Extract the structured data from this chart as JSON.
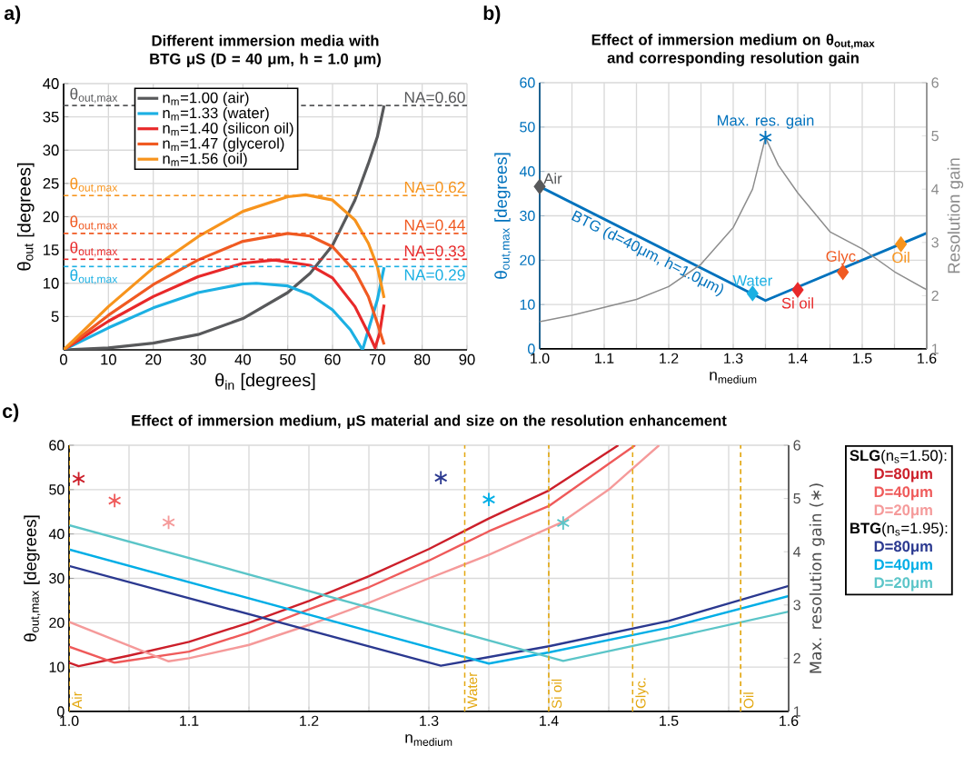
{
  "chart_data": [
    {
      "type": "line",
      "title": "Different immersion media with BTG μS (D = 40 μm, h = 1.0 μm)",
      "xlabel": "θ$_{in}$ [degrees]",
      "ylabel": "θ$_{out}$ [degrees]",
      "xlim": [
        0,
        90
      ],
      "ylim": [
        0,
        40
      ],
      "xticks": [
        0,
        10,
        20,
        30,
        40,
        50,
        60,
        70,
        80,
        90
      ],
      "yticks": [
        {
          "value": 0,
          "label": null
        },
        5,
        10,
        15,
        20,
        25,
        30,
        35,
        40
      ],
      "grid": true,
      "legend": "top left",
      "series": [
        {
          "name": "n$_{m}$=1.00 (air)",
          "color": "#58595b",
          "x": [
            0,
            10,
            20,
            30,
            40,
            50,
            55,
            60,
            65,
            68,
            70,
            71.5
          ],
          "values": [
            0,
            0.3,
            1,
            2.3,
            4.7,
            8.6,
            11.5,
            15.7,
            22.5,
            28,
            32,
            36.7
          ]
        },
        {
          "name": "n$_{m}$=1.33 (water)",
          "color": "#1cb0e3",
          "x": [
            0,
            10,
            20,
            30,
            40,
            43,
            50,
            55,
            60,
            64,
            66.7,
            68,
            70,
            71.5
          ],
          "values": [
            0,
            3.3,
            6.3,
            8.6,
            9.9,
            10,
            9.6,
            8.3,
            6,
            3,
            0,
            3,
            7.5,
            12.4
          ]
        },
        {
          "name": "n$_{m}$=1.40 (silicon oil)",
          "color": "#e8292a",
          "x": [
            0,
            10,
            20,
            30,
            40,
            47,
            55,
            60,
            65,
            68,
            69.5,
            70.5,
            71.5
          ],
          "values": [
            0,
            4.3,
            8,
            11,
            13,
            13.5,
            12.7,
            10.8,
            6.5,
            2.5,
            0.3,
            2.5,
            6.8
          ]
        },
        {
          "name": "n$_{m}$=1.47 (glycerol)",
          "color": "#f05a22",
          "x": [
            0,
            10,
            20,
            30,
            40,
            50,
            55,
            60,
            65,
            68,
            70,
            71.5
          ],
          "values": [
            0,
            5.2,
            9.8,
            13.5,
            16.3,
            17.5,
            17.1,
            15.5,
            11.8,
            8,
            4,
            0.8
          ]
        },
        {
          "name": "n$_{m}$=1.56 (oil)",
          "color": "#f7941d",
          "x": [
            0,
            10,
            20,
            30,
            40,
            50,
            54,
            60,
            65,
            68,
            70,
            71.5
          ],
          "values": [
            0,
            6.5,
            12.3,
            17,
            20.8,
            23,
            23.3,
            22.5,
            19.5,
            16,
            12.5,
            7.8
          ]
        }
      ],
      "ref_lines": [
        {
          "axis": "y",
          "value": 36.7,
          "color": "#58595b",
          "line_style": "dashed"
        },
        {
          "axis": "y",
          "value": 23.2,
          "color": "#f7941d",
          "line_style": "dashed"
        },
        {
          "axis": "y",
          "value": 17.5,
          "color": "#f05a22",
          "line_style": "dashed"
        },
        {
          "axis": "y",
          "value": 13.6,
          "color": "#e8292a",
          "line_style": "dashed"
        },
        {
          "axis": "y",
          "value": 12.5,
          "color": "#1cb0e3",
          "line_style": "dashed"
        }
      ],
      "annotations": [
        "a)",
        {
          "text": "θ$_{out,max}$",
          "x": 1,
          "y": 36.7
        },
        {
          "text": "θ$_{out,max}$",
          "x": 1,
          "y": 23.2
        },
        {
          "text": "θ$_{out,max}$",
          "x": 1,
          "y": 17.5
        },
        {
          "text": "θ$_{out,max}$",
          "x": 1,
          "y": 13.6
        },
        {
          "text": "θ$_{out,max}$",
          "x": 1,
          "y": 12.5
        },
        {
          "text": "NA=0.60",
          "x": 90,
          "y": 36.7
        },
        {
          "text": "NA=0.62",
          "x": 90,
          "y": 23.2
        },
        {
          "text": "NA=0.44",
          "x": 90,
          "y": 17.5
        },
        {
          "text": "NA=0.33",
          "x": 90,
          "y": 13.6
        },
        {
          "text": "NA=0.29",
          "x": 90,
          "y": 12.5
        }
      ]
    },
    {
      "type": "line",
      "title": "Effect of immersion medium on θ$_{out,max}$ and corresponding resolution gain",
      "xlabel": "n$_{medium}$",
      "ylabel": "θ$_{out,max}$ [degrees]",
      "y2label": "Resolution gain",
      "xlim": [
        1.0,
        1.6
      ],
      "ylim": [
        0,
        60
      ],
      "y2lim": [
        1,
        6
      ],
      "xticks": [
        {
          "value": 1.0,
          "label": "1.0"
        },
        {
          "value": 1.05,
          "label": null
        },
        1.1,
        {
          "value": 1.15,
          "label": null
        },
        1.2,
        {
          "value": 1.25,
          "label": null
        },
        1.3,
        {
          "value": 1.35,
          "label": null
        },
        1.4,
        {
          "value": 1.45,
          "label": null
        },
        1.5,
        {
          "value": 1.55,
          "label": null
        },
        1.6
      ],
      "yticks": [
        0,
        10,
        20,
        30,
        40,
        50,
        60
      ],
      "y2ticks": [
        1,
        2,
        3,
        4,
        5,
        6
      ],
      "grid": true,
      "legend": false,
      "series": [
        {
          "type": "line",
          "name": "BTG (d=40μm, h=1.0μm)",
          "color": "#0072bd",
          "x": [
            1.0,
            1.35,
            1.6
          ],
          "values": [
            36.6,
            10.9,
            26.1
          ]
        },
        {
          "type": "line",
          "axis": "y2",
          "color": "#8c8c8c",
          "x": [
            1.0,
            1.05,
            1.1,
            1.15,
            1.2,
            1.25,
            1.3,
            1.33,
            1.35,
            1.37,
            1.4,
            1.45,
            1.5,
            1.55,
            1.6
          ],
          "values": [
            1.51,
            1.63,
            1.78,
            1.93,
            2.17,
            2.59,
            3.28,
            4.0,
            4.97,
            4.45,
            3.93,
            3.2,
            2.88,
            2.45,
            2.11
          ]
        },
        {
          "type": "scatter",
          "marker": "diamond",
          "x": [
            1.0,
            1.33,
            1.4,
            1.47,
            1.56
          ],
          "values": [
            36.6,
            12.5,
            13.3,
            17.3,
            23.6
          ],
          "colors": [
            "#58595b",
            "#1cb0e3",
            "#e8292a",
            "#f05a22",
            "#f7941d"
          ]
        },
        {
          "type": "scatter",
          "axis": "y2",
          "marker": "cross",
          "color": "#0072bd",
          "x": [
            1.35
          ],
          "values": [
            4.97
          ]
        }
      ],
      "annotations": [
        "b)",
        {
          "text": "Air",
          "x": 1.0,
          "y": 36.6
        },
        {
          "text": "Water",
          "x": 1.33,
          "y": 12.5
        },
        {
          "text": "Si oil",
          "x": 1.4,
          "y": 13.3
        },
        {
          "text": "Glyc.",
          "x": 1.47,
          "y": 17.3
        },
        {
          "text": "Oil",
          "x": 1.56,
          "y": 23.6
        },
        "Max. res. gain"
      ]
    },
    {
      "type": "line",
      "title": "Effect of immersion medium, μS material and size on the resolution enhancement",
      "xlabel": "n$_{medium}$",
      "ylabel": "θ$_{out,max}$ [degrees]",
      "y2label": "Max. resolution gain (∗)",
      "xlim": [
        1.0,
        1.6
      ],
      "ylim": [
        0,
        60
      ],
      "y2lim": [
        1,
        6
      ],
      "xticks": [
        {
          "value": 1.0,
          "label": "1.0"
        },
        {
          "value": 1.05,
          "label": null
        },
        1.1,
        {
          "value": 1.15,
          "label": null
        },
        1.2,
        {
          "value": 1.25,
          "label": null
        },
        1.3,
        {
          "value": 1.35,
          "label": null
        },
        1.4,
        {
          "value": 1.45,
          "label": null
        },
        1.5,
        {
          "value": 1.55,
          "label": null
        },
        1.6
      ],
      "yticks": [
        0,
        10,
        20,
        30,
        40,
        50,
        60
      ],
      "y2ticks": [
        1,
        2,
        3,
        4,
        5,
        6
      ],
      "grid": true,
      "legend": "right",
      "series": [
        {
          "type": "line",
          "name": "D=80μm",
          "color": "#cc1f2a",
          "x": [
            1.0,
            1.008,
            1.05,
            1.1,
            1.15,
            1.2,
            1.25,
            1.3,
            1.35,
            1.4,
            1.458
          ],
          "values": [
            11,
            10.2,
            12.6,
            15.7,
            20,
            24.9,
            30.5,
            36.6,
            43.5,
            49.8,
            60
          ]
        },
        {
          "type": "line",
          "name": "D=40μm",
          "color": "#ef5a5a",
          "x": [
            1.0,
            1.038,
            1.1,
            1.15,
            1.2,
            1.25,
            1.3,
            1.35,
            1.4,
            1.472
          ],
          "values": [
            14.6,
            11,
            13.5,
            17.8,
            23,
            28,
            34,
            40.6,
            46.3,
            60
          ]
        },
        {
          "type": "line",
          "name": "D=20μm",
          "color": "#f59a9a",
          "x": [
            1.0,
            1.083,
            1.1,
            1.15,
            1.2,
            1.25,
            1.3,
            1.35,
            1.41,
            1.45,
            1.492
          ],
          "values": [
            20.2,
            11.3,
            12,
            15,
            19.5,
            24.5,
            30,
            35.3,
            42.5,
            50,
            60
          ]
        },
        {
          "type": "line",
          "name": "D=80μm",
          "color": "#2b3990",
          "x": [
            1.0,
            1.31,
            1.4,
            1.5,
            1.6
          ],
          "values": [
            32.8,
            10.3,
            14.7,
            20.4,
            28.3
          ]
        },
        {
          "type": "line",
          "name": "D=40μm",
          "color": "#00aee6",
          "x": [
            1.0,
            1.35,
            1.4,
            1.5,
            1.6
          ],
          "values": [
            36.5,
            10.8,
            13.3,
            18.9,
            26
          ]
        },
        {
          "type": "line",
          "name": "D=20μm",
          "color": "#5bc5c8",
          "x": [
            1.0,
            1.412,
            1.5,
            1.6
          ],
          "values": [
            42,
            11.4,
            16.5,
            22.5
          ]
        },
        {
          "type": "scatter",
          "axis": "y2",
          "marker": "cross",
          "x": [
            1.008,
            1.038,
            1.083,
            1.31,
            1.35,
            1.412
          ],
          "values": [
            5.37,
            4.96,
            4.55,
            5.39,
            4.98,
            4.54
          ],
          "colors": [
            "#cc1f2a",
            "#ef5a5a",
            "#f59a9a",
            "#2b3990",
            "#00aee6",
            "#5bc5c8"
          ]
        }
      ],
      "ref_lines": [
        {
          "axis": "x",
          "value": 1.0,
          "label": "Air",
          "color": "#e3a812",
          "line_style": "dashed"
        },
        {
          "axis": "x",
          "value": 1.33,
          "label": "Water",
          "color": "#e3a812",
          "line_style": "dashed"
        },
        {
          "axis": "x",
          "value": 1.4,
          "label": "Si oil",
          "color": "#e3a812",
          "line_style": "dashed"
        },
        {
          "axis": "x",
          "value": 1.47,
          "label": "Glyc.",
          "color": "#e3a812",
          "line_style": "dashed"
        },
        {
          "axis": "x",
          "value": 1.56,
          "label": "Oil",
          "color": "#e3a812",
          "line_style": "dashed"
        }
      ],
      "annotations": [
        "c)",
        "**SLG**(n$_{s}$=1.50):",
        "**BTG**(n$_{s}$=1.95):"
      ]
    }
  ]
}
